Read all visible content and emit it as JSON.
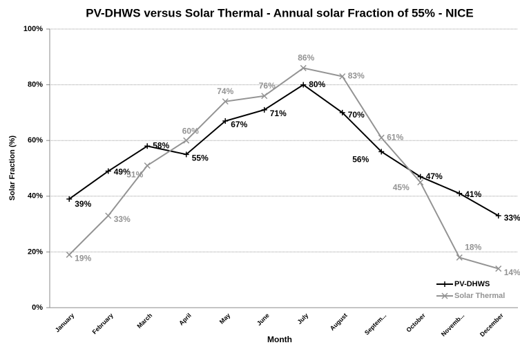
{
  "chart_data": {
    "type": "line",
    "title": "PV-DHWS versus Solar Thermal - Annual solar Fraction of 55%  - NICE",
    "x_label": "Month",
    "y_label": "Solar Fraction (%)",
    "categories": [
      "January",
      "February",
      "March",
      "April",
      "May",
      "June",
      "July",
      "August",
      "Septem...",
      "October",
      "Novemb...",
      "December"
    ],
    "series": [
      {
        "name": "PV-DHWS",
        "color": "#000000",
        "marker": "+",
        "values": [
          39,
          49,
          58,
          55,
          67,
          71,
          80,
          70,
          56,
          47,
          41,
          33
        ],
        "value_labels": [
          "39%",
          "49%",
          "58%",
          "55%",
          "67%",
          "71%",
          "80%",
          "70%",
          "56%",
          "47%",
          "41%",
          "33%"
        ]
      },
      {
        "name": "Solar Thermal",
        "color": "#939393",
        "marker": "x",
        "values": [
          19,
          33,
          51,
          60,
          74,
          76,
          86,
          83,
          61,
          45,
          18,
          14
        ],
        "value_labels": [
          "19%",
          "33%",
          "51%",
          "60%",
          "74%",
          "76%",
          "86%",
          "83%",
          "61%",
          "45%",
          "18%",
          "14%"
        ]
      }
    ],
    "ylim": [
      0,
      100
    ],
    "yticks": [
      {
        "value": 0,
        "label": "0%"
      },
      {
        "value": 20,
        "label": "20%"
      },
      {
        "value": 40,
        "label": "40%"
      },
      {
        "value": 60,
        "label": "60%"
      },
      {
        "value": 80,
        "label": "80%"
      },
      {
        "value": 100,
        "label": "100%"
      }
    ],
    "grid": true,
    "legend": "lower right"
  }
}
